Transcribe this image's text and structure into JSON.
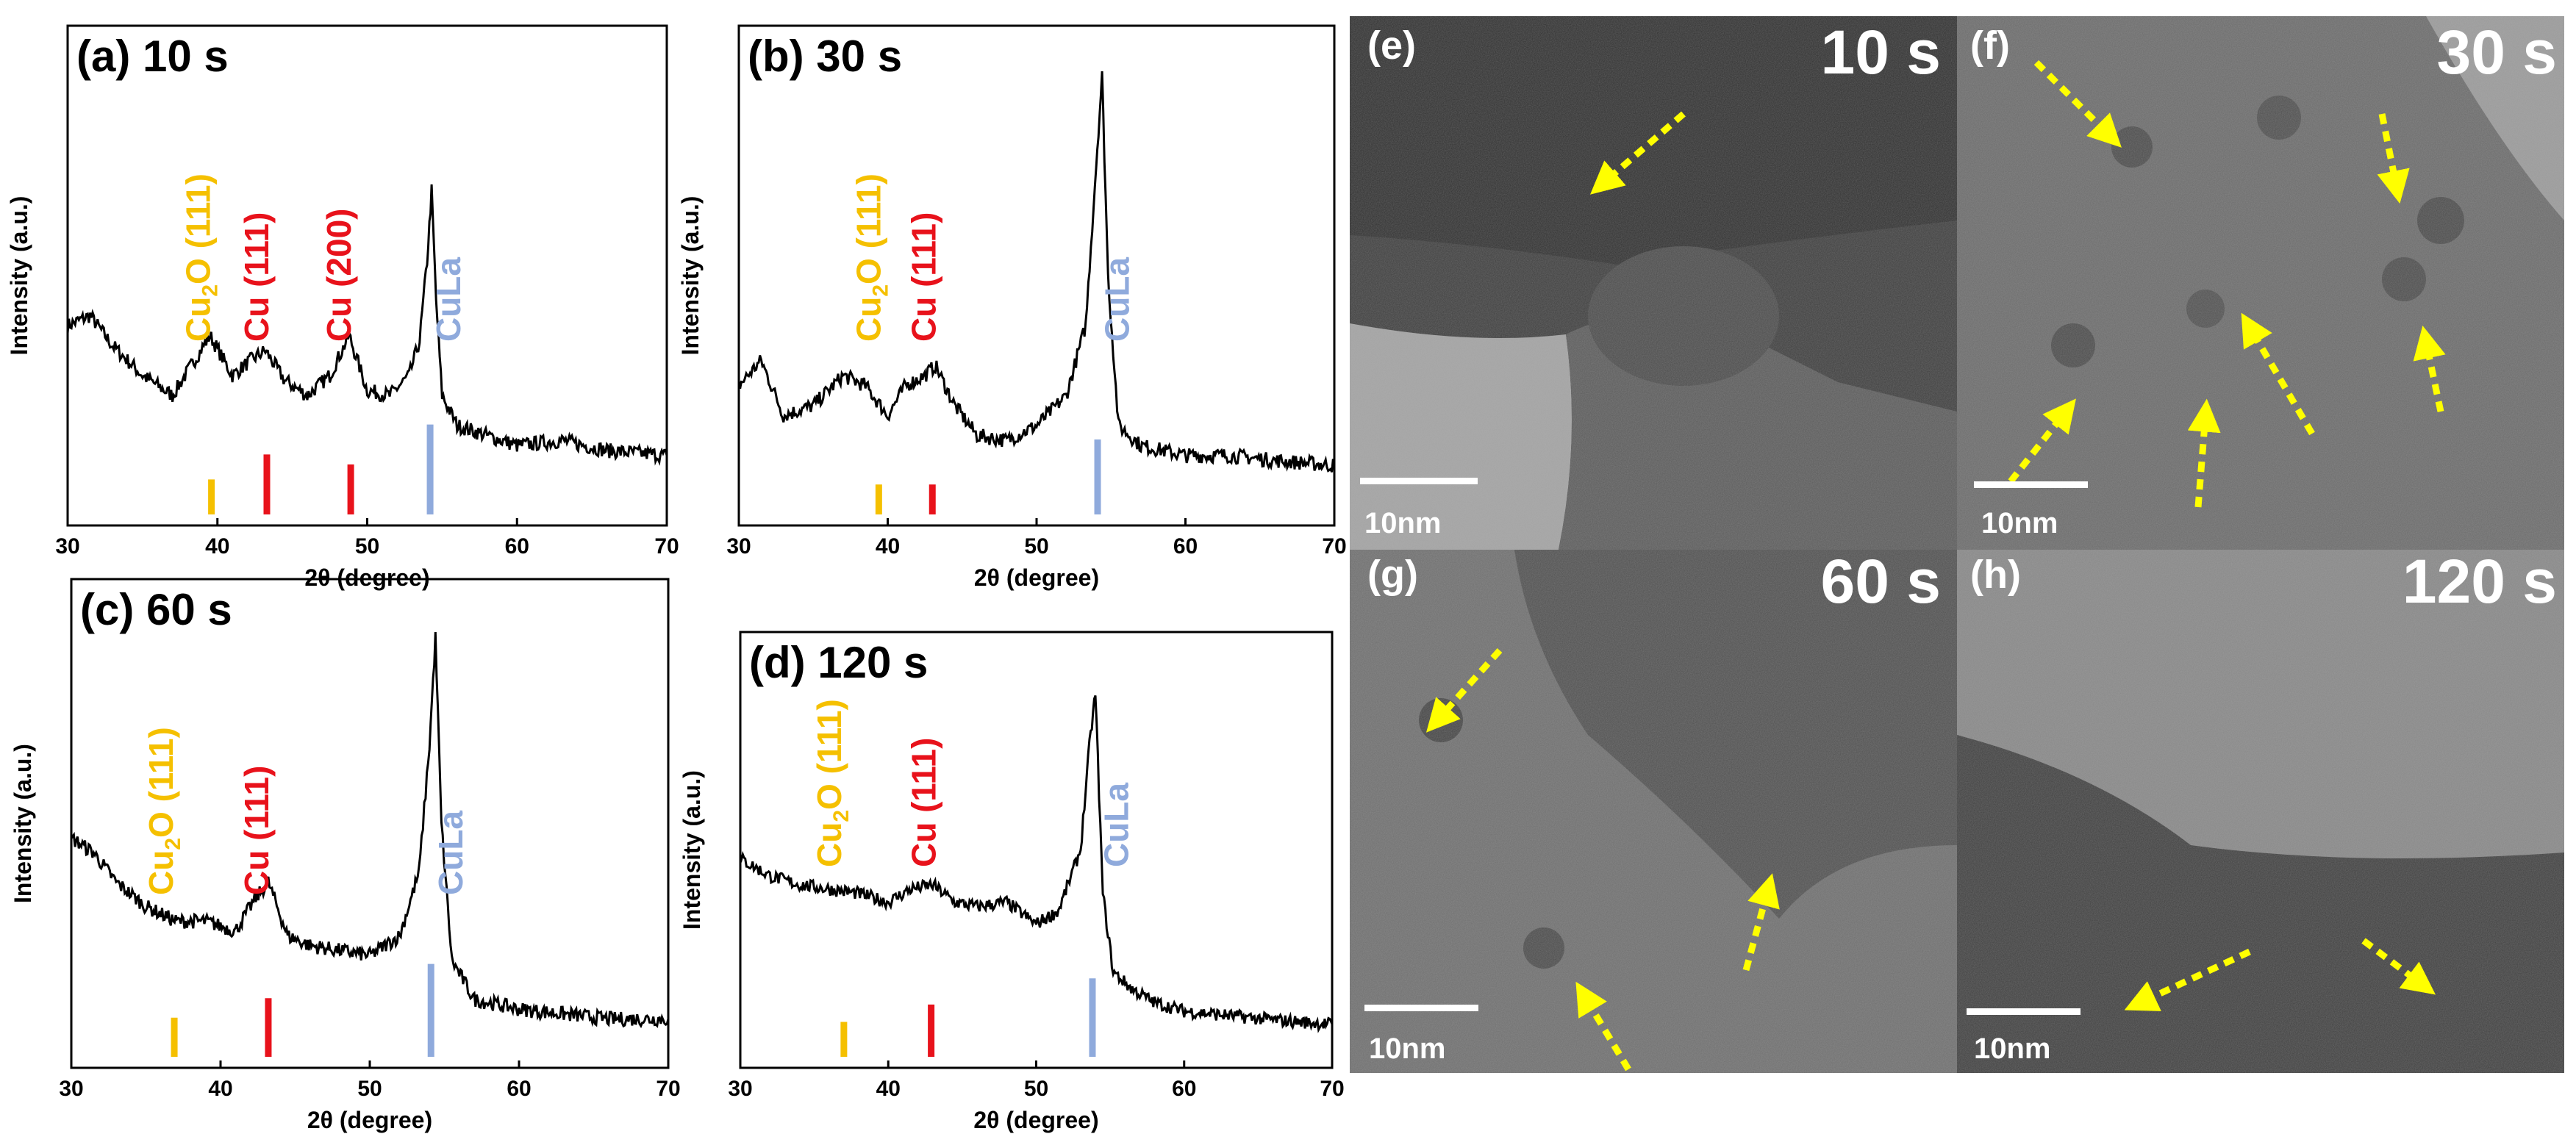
{
  "colors": {
    "cu2o": "#f5c000",
    "cu": "#e8121b",
    "cula": "#8faadc",
    "arrow": "#ffff00",
    "trace": "#000000"
  },
  "chart_data": [
    {
      "type": "line",
      "id": "a",
      "panel_label": "(a)",
      "time_label": "10 s",
      "xlabel": "2θ (degree)",
      "ylabel": "Intensity (a.u.)",
      "xlim": [
        30,
        70
      ],
      "ylim": [
        0,
        1
      ],
      "xticks": [
        30,
        40,
        50,
        60,
        70
      ],
      "peak_labels": [
        {
          "text": "Cu",
          "sub": "2",
          "text2": "O (111)",
          "x": 39.5,
          "color": "cu2o"
        },
        {
          "text": "Cu (111)",
          "x": 43.4,
          "color": "cu"
        },
        {
          "text": "Cu (200)",
          "x": 48.9,
          "color": "cu"
        },
        {
          "text": "CuLa",
          "x": 56.2,
          "color": "cula"
        }
      ],
      "reference_lines": [
        {
          "x": 39.6,
          "height": 0.07,
          "color": "cu2o"
        },
        {
          "x": 43.3,
          "height": 0.12,
          "color": "cu"
        },
        {
          "x": 48.9,
          "height": 0.1,
          "color": "cu"
        },
        {
          "x": 54.2,
          "height": 0.18,
          "color": "cula"
        }
      ],
      "x": [
        30,
        31.5,
        33,
        35,
        37,
        39.5,
        41,
        42.2,
        43.2,
        44.5,
        46,
        47.5,
        48.8,
        50,
        51.5,
        52.8,
        53.5,
        54,
        54.3,
        54.6,
        55,
        56,
        58,
        60,
        63,
        66,
        70
      ],
      "y": [
        0.4,
        0.42,
        0.36,
        0.3,
        0.26,
        0.38,
        0.3,
        0.33,
        0.35,
        0.29,
        0.26,
        0.3,
        0.38,
        0.27,
        0.26,
        0.3,
        0.37,
        0.53,
        0.67,
        0.45,
        0.26,
        0.2,
        0.18,
        0.16,
        0.17,
        0.15,
        0.14
      ]
    },
    {
      "type": "line",
      "id": "b",
      "panel_label": "(b)",
      "time_label": "30 s",
      "xlabel": "2θ (degree)",
      "ylabel": "Intensity (a.u.)",
      "xlim": [
        30,
        70
      ],
      "ylim": [
        0,
        1
      ],
      "xticks": [
        30,
        40,
        50,
        60,
        70
      ],
      "peak_labels": [
        {
          "text": "Cu",
          "sub": "2",
          "text2": "O (111)",
          "x": 39.5,
          "color": "cu2o"
        },
        {
          "text": "Cu (111)",
          "x": 43.2,
          "color": "cu"
        },
        {
          "text": "CuLa",
          "x": 56.2,
          "color": "cula"
        }
      ],
      "reference_lines": [
        {
          "x": 39.4,
          "height": 0.06,
          "color": "cu2o"
        },
        {
          "x": 43.0,
          "height": 0.06,
          "color": "cu"
        },
        {
          "x": 54.1,
          "height": 0.15,
          "color": "cula"
        }
      ],
      "x": [
        30,
        31.5,
        33,
        35,
        37,
        38.5,
        40,
        41.2,
        42.5,
        43.2,
        44.5,
        46,
        48,
        50,
        52,
        53.3,
        54,
        54.4,
        54.8,
        55.5,
        57,
        60,
        63,
        66,
        70
      ],
      "y": [
        0.28,
        0.33,
        0.22,
        0.24,
        0.3,
        0.28,
        0.22,
        0.28,
        0.3,
        0.32,
        0.24,
        0.18,
        0.17,
        0.2,
        0.26,
        0.4,
        0.72,
        0.9,
        0.5,
        0.2,
        0.16,
        0.14,
        0.14,
        0.13,
        0.12
      ]
    },
    {
      "type": "line",
      "id": "c",
      "panel_label": "(c)",
      "time_label": "60 s",
      "xlabel": "2θ (degree)",
      "ylabel": "Intensity (a.u.)",
      "xlim": [
        30,
        70
      ],
      "ylim": [
        0,
        1
      ],
      "xticks": [
        30,
        40,
        50,
        60,
        70
      ],
      "peak_labels": [
        {
          "text": "Cu",
          "sub": "2",
          "text2": "O (111)",
          "x": 36.8,
          "color": "cu2o"
        },
        {
          "text": "Cu (111)",
          "x": 43.2,
          "color": "cu"
        },
        {
          "text": "CuLa",
          "x": 56.2,
          "color": "cula"
        }
      ],
      "reference_lines": [
        {
          "x": 36.9,
          "height": 0.08,
          "color": "cu2o"
        },
        {
          "x": 43.2,
          "height": 0.12,
          "color": "cu"
        },
        {
          "x": 54.1,
          "height": 0.19,
          "color": "cula"
        }
      ],
      "x": [
        30,
        31.5,
        33,
        35,
        37,
        39,
        41,
        42.2,
        43.2,
        44.5,
        46,
        48,
        50,
        52,
        53.3,
        54,
        54.4,
        54.8,
        55.5,
        57,
        60,
        63,
        66,
        70
      ],
      "y": [
        0.47,
        0.44,
        0.38,
        0.33,
        0.3,
        0.3,
        0.28,
        0.34,
        0.38,
        0.27,
        0.25,
        0.24,
        0.23,
        0.27,
        0.4,
        0.66,
        0.88,
        0.5,
        0.22,
        0.14,
        0.12,
        0.11,
        0.1,
        0.1
      ]
    },
    {
      "type": "line",
      "id": "d",
      "panel_label": "(d)",
      "time_label": "120 s",
      "xlabel": "2θ (degree)",
      "ylabel": "Intensity (a.u.)",
      "xlim": [
        30,
        70
      ],
      "ylim": [
        0,
        1
      ],
      "xticks": [
        30,
        40,
        50,
        60,
        70
      ],
      "peak_labels": [
        {
          "text": "Cu",
          "sub": "2",
          "text2": "O (111)",
          "x": 36.8,
          "color": "cu2o"
        },
        {
          "text": "Cu (111)",
          "x": 43.2,
          "color": "cu"
        },
        {
          "text": "CuLa",
          "x": 56.2,
          "color": "cula"
        }
      ],
      "reference_lines": [
        {
          "x": 37.0,
          "height": 0.08,
          "color": "cu2o"
        },
        {
          "x": 42.9,
          "height": 0.12,
          "color": "cu"
        },
        {
          "x": 53.8,
          "height": 0.18,
          "color": "cula"
        }
      ],
      "x": [
        30,
        32,
        34,
        36,
        38,
        40,
        41.5,
        43,
        44.5,
        46,
        48,
        50,
        51.5,
        53,
        53.6,
        54,
        54.5,
        55.2,
        56.5,
        58,
        60,
        63,
        66,
        70
      ],
      "y": [
        0.48,
        0.44,
        0.42,
        0.41,
        0.4,
        0.38,
        0.41,
        0.42,
        0.38,
        0.37,
        0.38,
        0.33,
        0.36,
        0.5,
        0.74,
        0.86,
        0.4,
        0.22,
        0.18,
        0.15,
        0.13,
        0.12,
        0.11,
        0.1
      ]
    }
  ],
  "tem_panels": [
    {
      "label": "(e)",
      "time": "10 s",
      "scale": "10nm"
    },
    {
      "label": "(f)",
      "time": "30 s",
      "scale": "10nm"
    },
    {
      "label": "(g)",
      "time": "60 s",
      "scale": "10nm"
    },
    {
      "label": "(h)",
      "time": "120 s",
      "scale": "10nm"
    }
  ]
}
